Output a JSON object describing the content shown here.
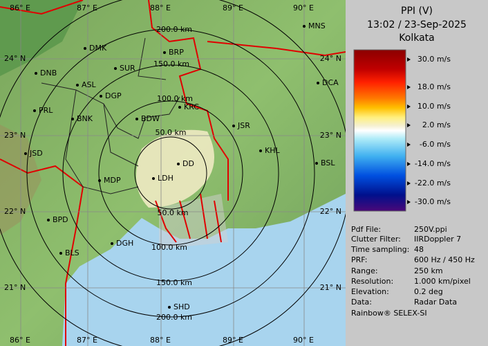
{
  "panel": {
    "title": "PPI (V)",
    "datetime": "13:02 / 23-Sep-2025",
    "station": "Kolkata",
    "legend": [
      "30.0 m/s",
      "18.0 m/s",
      "10.0 m/s",
      "2.0 m/s",
      "-6.0 m/s",
      "-14.0 m/s",
      "-22.0 m/s",
      "-30.0 m/s"
    ],
    "info": [
      [
        "Pdf File:",
        "250V.ppi"
      ],
      [
        "Clutter Filter:",
        "IIRDoppler 7"
      ],
      [
        "Time sampling:",
        "48"
      ],
      [
        "PRF:",
        "600 Hz / 450 Hz"
      ],
      [
        "Range:",
        "250 km"
      ],
      [
        "Resolution:",
        "1.000 km/pixel"
      ],
      [
        "Elevation:",
        "0.2 deg"
      ],
      [
        "Data:",
        "Radar Data"
      ]
    ],
    "footer": "Rainbow® SELEX-SI"
  },
  "map": {
    "lon_labels": [
      "86° E",
      "87° E",
      "88° E",
      "89° E",
      "90° E"
    ],
    "lat_labels": [
      "24° N",
      "23° N",
      "22° N",
      "21° N"
    ],
    "ring_labels": [
      "200.0 km",
      "150.0 km",
      "100.0 km",
      "50.0 km",
      "50.0 km",
      "100.0 km",
      "150.0 km",
      "200.0 km"
    ],
    "cities": [
      "MNS",
      "DMK",
      "BRP",
      "DNB",
      "SUR",
      "ASL",
      "DGP",
      "DCA",
      "PRL",
      "BNK",
      "KRC",
      "BDW",
      "JSR",
      "KHL",
      "JSD",
      "DD",
      "BSL",
      "MDP",
      "LDH",
      "BPD",
      "DGH",
      "BLS",
      "SHD"
    ]
  }
}
